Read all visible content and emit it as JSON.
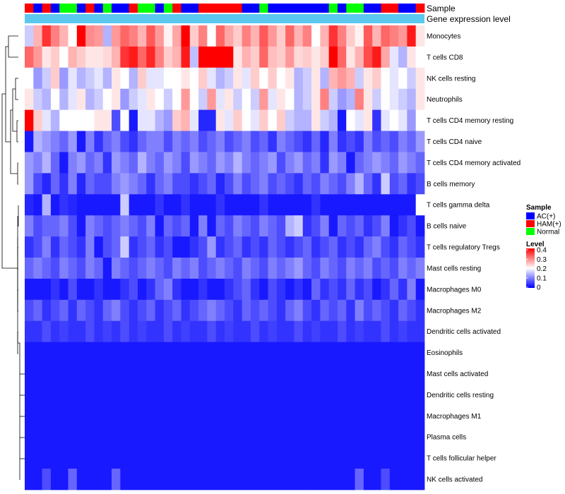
{
  "chart_data": {
    "type": "heatmap",
    "column_annotations": [
      {
        "name": "Sample",
        "type": "categorical"
      },
      {
        "name": "Gene expression level",
        "type": "constant",
        "color": "#5bc8f0"
      }
    ],
    "sample_groups": [
      "HAM(+)",
      "AC(+)",
      "HAM(+)",
      "AC(+)",
      "Normal",
      "Normal",
      "AC(+)",
      "HAM(+)",
      "AC(+)",
      "Normal",
      "AC(+)",
      "AC(+)",
      "HAM(+)",
      "Normal",
      "Normal",
      "AC(+)",
      "Normal",
      "HAM(+)",
      "AC(+)",
      "AC(+)",
      "HAM(+)",
      "HAM(+)",
      "HAM(+)",
      "HAM(+)",
      "HAM(+)",
      "AC(+)",
      "AC(+)",
      "Normal",
      "AC(+)",
      "AC(+)",
      "AC(+)",
      "AC(+)",
      "AC(+)",
      "AC(+)",
      "AC(+)",
      "Normal",
      "AC(+)",
      "Normal",
      "Normal",
      "AC(+)",
      "AC(+)",
      "HAM(+)",
      "HAM(+)",
      "AC(+)",
      "AC(+)",
      "HAM(+)"
    ],
    "rows": [
      "Monocytes",
      "T cells CD8",
      "NK cells resting",
      "Neutrophils",
      "T cells CD4 memory resting",
      "T cells CD4 naive",
      "T cells CD4 memory activated",
      "B cells memory",
      "T cells gamma delta",
      "B cells naive",
      "T cells regulatory  Tregs",
      "Mast cells resting",
      "Macrophages M0",
      "Macrophages M2",
      "Dendritic cells activated",
      "Eosinophils",
      "Mast cells activated",
      "Dendritic cells resting",
      "Macrophages M1",
      "Plasma cells",
      "T cells follicular helper",
      "NK cells activated"
    ],
    "values": [
      [
        0.16,
        0.26,
        0.36,
        0.3,
        0.26,
        0.2,
        0.4,
        0.29,
        0.28,
        0.14,
        0.28,
        0.32,
        0.3,
        0.26,
        0.33,
        0.28,
        0.21,
        0.27,
        0.4,
        0.24,
        0.3,
        0.2,
        0.32,
        0.27,
        0.24,
        0.3,
        0.26,
        0.33,
        0.28,
        0.24,
        0.32,
        0.26,
        0.3,
        0.2,
        0.26,
        0.36,
        0.3,
        0.24,
        0.21,
        0.33,
        0.26,
        0.32,
        0.3,
        0.28,
        0.38,
        0.22
      ],
      [
        0.32,
        0.28,
        0.22,
        0.24,
        0.2,
        0.26,
        0.24,
        0.22,
        0.22,
        0.23,
        0.26,
        0.36,
        0.38,
        0.32,
        0.37,
        0.3,
        0.24,
        0.26,
        0.38,
        0.15,
        0.4,
        0.4,
        0.4,
        0.4,
        0.22,
        0.26,
        0.24,
        0.32,
        0.25,
        0.24,
        0.28,
        0.23,
        0.24,
        0.22,
        0.24,
        0.4,
        0.32,
        0.22,
        0.26,
        0.34,
        0.38,
        0.27,
        0.18,
        0.14,
        0.22,
        0.2
      ],
      [
        0.2,
        0.12,
        0.16,
        0.24,
        0.12,
        0.18,
        0.14,
        0.16,
        0.18,
        0.14,
        0.22,
        0.2,
        0.14,
        0.24,
        0.18,
        0.18,
        0.2,
        0.2,
        0.22,
        0.2,
        0.24,
        0.18,
        0.14,
        0.16,
        0.22,
        0.18,
        0.24,
        0.2,
        0.24,
        0.2,
        0.22,
        0.14,
        0.16,
        0.22,
        0.14,
        0.26,
        0.28,
        0.26,
        0.16,
        0.22,
        0.24,
        0.2,
        0.18,
        0.2,
        0.16,
        0.22
      ],
      [
        0.22,
        0.16,
        0.14,
        0.2,
        0.14,
        0.18,
        0.22,
        0.14,
        0.16,
        0.2,
        0.22,
        0.12,
        0.16,
        0.18,
        0.22,
        0.2,
        0.16,
        0.2,
        0.28,
        0.2,
        0.16,
        0.28,
        0.18,
        0.22,
        0.16,
        0.2,
        0.16,
        0.28,
        0.18,
        0.22,
        0.2,
        0.14,
        0.16,
        0.22,
        0.3,
        0.16,
        0.12,
        0.14,
        0.3,
        0.22,
        0.16,
        0.2,
        0.18,
        0.16,
        0.14,
        0.22
      ],
      [
        0.4,
        0.24,
        0.18,
        0.14,
        0.2,
        0.2,
        0.2,
        0.2,
        0.22,
        0.22,
        0.06,
        0.2,
        0.02,
        0.18,
        0.18,
        0.14,
        0.12,
        0.24,
        0.26,
        0.18,
        0.03,
        0.03,
        0.22,
        0.18,
        0.24,
        0.2,
        0.18,
        0.24,
        0.2,
        0.24,
        0.16,
        0.14,
        0.14,
        0.22,
        0.16,
        0.14,
        0.02,
        0.2,
        0.18,
        0.22,
        0.04,
        0.18,
        0.2,
        0.18,
        0.12,
        0.2
      ],
      [
        0.02,
        0.14,
        0.12,
        0.1,
        0.08,
        0.12,
        0.02,
        0.1,
        0.04,
        0.08,
        0.1,
        0.06,
        0.04,
        0.08,
        0.1,
        0.1,
        0.06,
        0.1,
        0.08,
        0.1,
        0.06,
        0.08,
        0.1,
        0.06,
        0.08,
        0.1,
        0.06,
        0.08,
        0.04,
        0.1,
        0.08,
        0.06,
        0.04,
        0.08,
        0.03,
        0.1,
        0.04,
        0.06,
        0.04,
        0.1,
        0.06,
        0.08,
        0.06,
        0.1,
        0.08,
        0.12
      ],
      [
        0.12,
        0.1,
        0.14,
        0.08,
        0.02,
        0.1,
        0.12,
        0.08,
        0.1,
        0.04,
        0.12,
        0.1,
        0.08,
        0.14,
        0.1,
        0.08,
        0.12,
        0.1,
        0.06,
        0.12,
        0.1,
        0.08,
        0.12,
        0.1,
        0.14,
        0.1,
        0.08,
        0.1,
        0.12,
        0.06,
        0.1,
        0.12,
        0.08,
        0.1,
        0.04,
        0.12,
        0.1,
        0.02,
        0.08,
        0.1,
        0.12,
        0.1,
        0.08,
        0.12,
        0.1,
        0.08
      ],
      [
        0.12,
        0.06,
        0.03,
        0.08,
        0.04,
        0.1,
        0.03,
        0.08,
        0.06,
        0.06,
        0.1,
        0.12,
        0.1,
        0.08,
        0.04,
        0.08,
        0.1,
        0.06,
        0.06,
        0.04,
        0.06,
        0.08,
        0.03,
        0.06,
        0.1,
        0.06,
        0.08,
        0.1,
        0.06,
        0.08,
        0.06,
        0.04,
        0.08,
        0.06,
        0.1,
        0.08,
        0.06,
        0.1,
        0.14,
        0.08,
        0.04,
        0.16,
        0.06,
        0.08,
        0.04,
        0.06
      ],
      [
        0.03,
        0.02,
        0.14,
        0.02,
        0.04,
        0.03,
        0.02,
        0.02,
        0.02,
        0.02,
        0.02,
        0.16,
        0.02,
        0.02,
        0.02,
        0.04,
        0.02,
        0.02,
        0.04,
        0.02,
        0.02,
        0.02,
        0.04,
        0.02,
        0.02,
        0.02,
        0.02,
        0.04,
        0.02,
        0.02,
        0.02,
        0.02,
        0.02,
        0.04,
        0.02,
        0.02,
        0.02,
        0.02,
        0.02,
        0.02,
        0.02,
        0.02,
        0.02,
        0.02,
        0.02,
        0.2
      ],
      [
        0.1,
        0.06,
        0.08,
        0.08,
        0.1,
        0.06,
        0.02,
        0.1,
        0.08,
        0.06,
        0.08,
        0.1,
        0.08,
        0.06,
        0.1,
        0.02,
        0.08,
        0.06,
        0.08,
        0.02,
        0.1,
        0.02,
        0.08,
        0.06,
        0.1,
        0.08,
        0.06,
        0.1,
        0.08,
        0.06,
        0.14,
        0.16,
        0.04,
        0.06,
        0.1,
        0.02,
        0.08,
        0.06,
        0.08,
        0.04,
        0.06,
        0.1,
        0.02,
        0.04,
        0.06,
        0.02
      ],
      [
        0.04,
        0.06,
        0.1,
        0.04,
        0.08,
        0.06,
        0.04,
        0.1,
        0.02,
        0.06,
        0.08,
        0.16,
        0.04,
        0.06,
        0.08,
        0.04,
        0.06,
        0.02,
        0.02,
        0.04,
        0.06,
        0.12,
        0.04,
        0.06,
        0.08,
        0.04,
        0.06,
        0.04,
        0.08,
        0.06,
        0.04,
        0.06,
        0.08,
        0.04,
        0.06,
        0.08,
        0.04,
        0.06,
        0.04,
        0.08,
        0.1,
        0.06,
        0.04,
        0.08,
        0.06,
        0.04
      ],
      [
        0.08,
        0.1,
        0.08,
        0.06,
        0.1,
        0.08,
        0.06,
        0.1,
        0.08,
        0.02,
        0.1,
        0.08,
        0.06,
        0.08,
        0.1,
        0.08,
        0.06,
        0.1,
        0.08,
        0.1,
        0.06,
        0.08,
        0.1,
        0.08,
        0.06,
        0.1,
        0.08,
        0.06,
        0.1,
        0.08,
        0.1,
        0.12,
        0.08,
        0.06,
        0.1,
        0.08,
        0.06,
        0.1,
        0.08,
        0.1,
        0.06,
        0.08,
        0.06,
        0.1,
        0.08,
        0.1
      ],
      [
        0.02,
        0.02,
        0.02,
        0.04,
        0.02,
        0.06,
        0.02,
        0.02,
        0.04,
        0.02,
        0.02,
        0.04,
        0.06,
        0.02,
        0.04,
        0.08,
        0.1,
        0.04,
        0.02,
        0.02,
        0.04,
        0.02,
        0.02,
        0.04,
        0.06,
        0.08,
        0.04,
        0.02,
        0.06,
        0.04,
        0.02,
        0.04,
        0.02,
        0.08,
        0.04,
        0.06,
        0.04,
        0.08,
        0.04,
        0.06,
        0.02,
        0.04,
        0.08,
        0.04,
        0.1,
        0.02
      ],
      [
        0.06,
        0.08,
        0.04,
        0.06,
        0.08,
        0.04,
        0.08,
        0.06,
        0.04,
        0.08,
        0.1,
        0.06,
        0.04,
        0.06,
        0.08,
        0.04,
        0.06,
        0.08,
        0.04,
        0.06,
        0.08,
        0.1,
        0.08,
        0.06,
        0.04,
        0.08,
        0.06,
        0.08,
        0.06,
        0.04,
        0.08,
        0.1,
        0.06,
        0.04,
        0.08,
        0.06,
        0.08,
        0.04,
        0.1,
        0.06,
        0.08,
        0.06,
        0.04,
        0.08,
        0.06,
        0.04
      ],
      [
        0.04,
        0.04,
        0.06,
        0.04,
        0.05,
        0.04,
        0.04,
        0.06,
        0.04,
        0.05,
        0.04,
        0.06,
        0.04,
        0.05,
        0.04,
        0.04,
        0.06,
        0.04,
        0.05,
        0.04,
        0.04,
        0.06,
        0.04,
        0.05,
        0.04,
        0.04,
        0.06,
        0.04,
        0.05,
        0.04,
        0.04,
        0.06,
        0.04,
        0.05,
        0.04,
        0.04,
        0.06,
        0.04,
        0.05,
        0.04,
        0.04,
        0.06,
        0.04,
        0.05,
        0.04,
        0.04
      ],
      [
        0.02,
        0.02,
        0.02,
        0.02,
        0.02,
        0.02,
        0.02,
        0.02,
        0.02,
        0.02,
        0.02,
        0.02,
        0.02,
        0.02,
        0.02,
        0.02,
        0.02,
        0.02,
        0.02,
        0.02,
        0.02,
        0.02,
        0.02,
        0.02,
        0.02,
        0.02,
        0.02,
        0.02,
        0.02,
        0.02,
        0.02,
        0.02,
        0.02,
        0.02,
        0.02,
        0.02,
        0.02,
        0.02,
        0.02,
        0.02,
        0.02,
        0.02,
        0.02,
        0.02,
        0.02,
        0.02
      ],
      [
        0.02,
        0.02,
        0.02,
        0.02,
        0.02,
        0.02,
        0.02,
        0.02,
        0.02,
        0.02,
        0.02,
        0.02,
        0.02,
        0.02,
        0.02,
        0.02,
        0.02,
        0.02,
        0.02,
        0.02,
        0.02,
        0.02,
        0.02,
        0.02,
        0.02,
        0.02,
        0.02,
        0.02,
        0.02,
        0.02,
        0.02,
        0.02,
        0.02,
        0.02,
        0.02,
        0.02,
        0.02,
        0.02,
        0.02,
        0.02,
        0.02,
        0.02,
        0.02,
        0.02,
        0.02,
        0.02
      ],
      [
        0.02,
        0.02,
        0.02,
        0.02,
        0.02,
        0.02,
        0.02,
        0.02,
        0.02,
        0.02,
        0.02,
        0.02,
        0.02,
        0.02,
        0.02,
        0.02,
        0.02,
        0.02,
        0.02,
        0.02,
        0.02,
        0.02,
        0.02,
        0.02,
        0.02,
        0.02,
        0.02,
        0.02,
        0.02,
        0.02,
        0.02,
        0.02,
        0.02,
        0.02,
        0.02,
        0.02,
        0.02,
        0.02,
        0.02,
        0.02,
        0.02,
        0.02,
        0.02,
        0.02,
        0.02,
        0.02
      ],
      [
        0.02,
        0.02,
        0.02,
        0.02,
        0.02,
        0.02,
        0.02,
        0.02,
        0.02,
        0.02,
        0.02,
        0.02,
        0.02,
        0.02,
        0.02,
        0.02,
        0.02,
        0.02,
        0.02,
        0.02,
        0.02,
        0.02,
        0.02,
        0.02,
        0.02,
        0.02,
        0.02,
        0.02,
        0.02,
        0.02,
        0.02,
        0.02,
        0.02,
        0.02,
        0.02,
        0.02,
        0.02,
        0.02,
        0.02,
        0.02,
        0.02,
        0.02,
        0.02,
        0.02,
        0.02,
        0.02
      ],
      [
        0.02,
        0.02,
        0.02,
        0.02,
        0.02,
        0.02,
        0.02,
        0.02,
        0.02,
        0.02,
        0.02,
        0.02,
        0.02,
        0.02,
        0.02,
        0.02,
        0.02,
        0.02,
        0.02,
        0.02,
        0.02,
        0.02,
        0.02,
        0.02,
        0.02,
        0.02,
        0.02,
        0.02,
        0.02,
        0.02,
        0.02,
        0.02,
        0.02,
        0.02,
        0.02,
        0.02,
        0.02,
        0.02,
        0.02,
        0.02,
        0.02,
        0.02,
        0.02,
        0.02,
        0.02,
        0.02
      ],
      [
        0.02,
        0.02,
        0.02,
        0.02,
        0.02,
        0.02,
        0.02,
        0.02,
        0.02,
        0.02,
        0.02,
        0.02,
        0.02,
        0.02,
        0.02,
        0.02,
        0.02,
        0.02,
        0.02,
        0.02,
        0.02,
        0.02,
        0.02,
        0.02,
        0.02,
        0.02,
        0.02,
        0.02,
        0.02,
        0.02,
        0.02,
        0.02,
        0.02,
        0.02,
        0.02,
        0.02,
        0.02,
        0.02,
        0.02,
        0.02,
        0.02,
        0.02,
        0.02,
        0.02,
        0.02,
        0.02
      ],
      [
        0.02,
        0.02,
        0.06,
        0.02,
        0.02,
        0.08,
        0.02,
        0.02,
        0.02,
        0.02,
        0.08,
        0.02,
        0.02,
        0.02,
        0.02,
        0.02,
        0.02,
        0.02,
        0.02,
        0.02,
        0.02,
        0.02,
        0.02,
        0.02,
        0.02,
        0.02,
        0.02,
        0.02,
        0.02,
        0.02,
        0.02,
        0.02,
        0.02,
        0.02,
        0.02,
        0.02,
        0.02,
        0.02,
        0.08,
        0.02,
        0.02,
        0.06,
        0.02,
        0.02,
        0.02,
        0.02
      ]
    ],
    "legend": {
      "sample_title": "Sample",
      "groups": [
        {
          "label": "AC(+)",
          "color": "#0000ff"
        },
        {
          "label": "HAM(+)",
          "color": "#ff0000"
        },
        {
          "label": "Normal",
          "color": "#00ff00"
        }
      ],
      "level_title": "Level",
      "level_ticks": [
        "0.4",
        "0.3",
        "0.2",
        "0.1",
        "0"
      ],
      "level_range": [
        0,
        0.4
      ],
      "color_scale": [
        "#0000ff",
        "#ffffff",
        "#ff0000"
      ]
    }
  }
}
